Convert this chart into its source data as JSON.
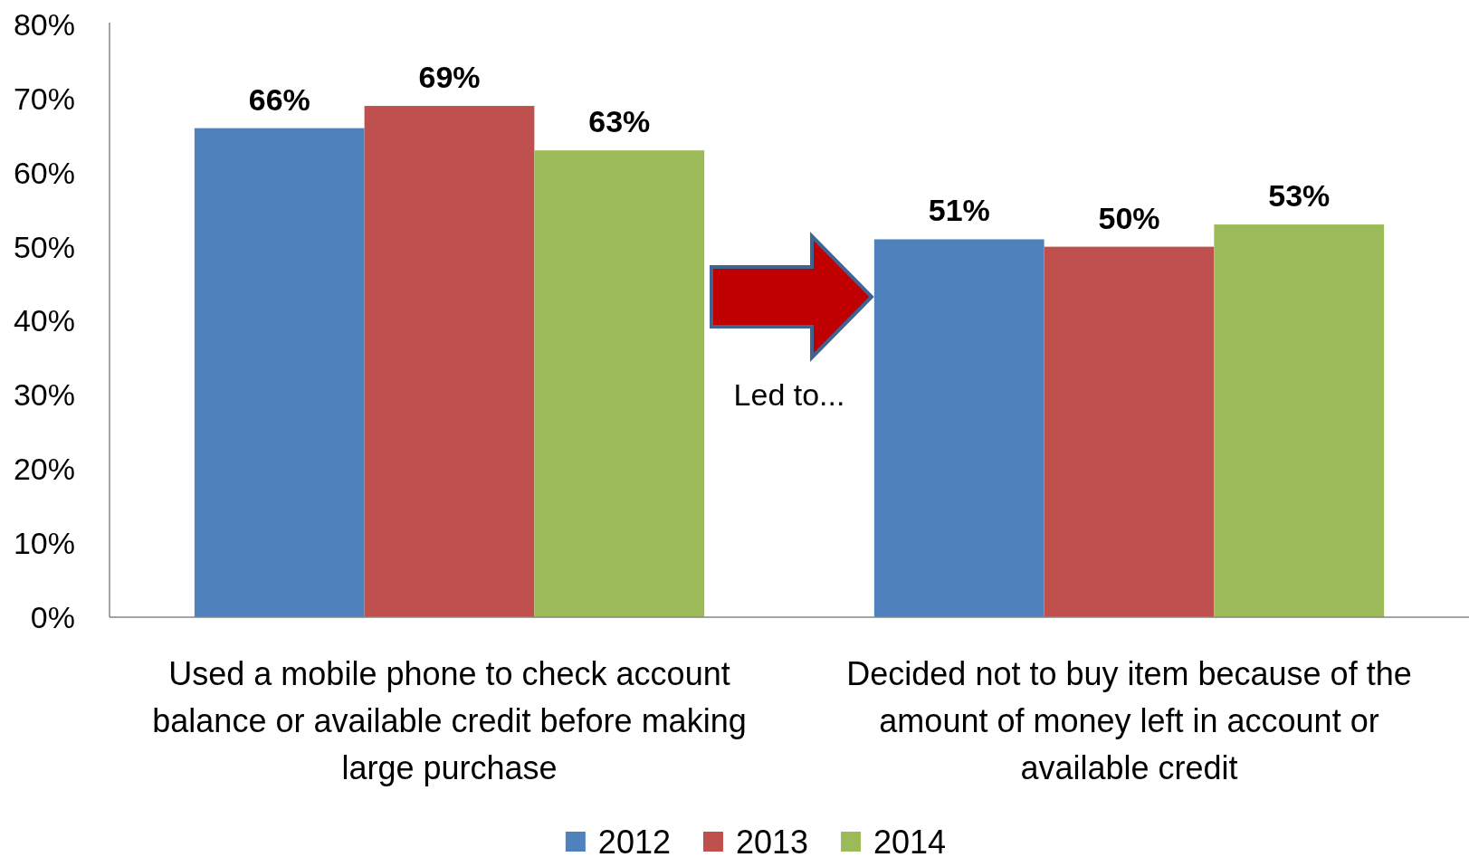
{
  "chart_data": {
    "type": "bar",
    "categories": [
      "Used a mobile phone to check account balance or available credit before making large purchase",
      "Decided not to buy item because of the amount of money left in account or available credit"
    ],
    "series": [
      {
        "name": "2012",
        "color": "#4f81bd",
        "values": [
          66,
          51
        ],
        "value_labels": [
          "66%",
          "51%"
        ]
      },
      {
        "name": "2013",
        "color": "#c0504d",
        "values": [
          69,
          50
        ],
        "value_labels": [
          "69%",
          "50%"
        ]
      },
      {
        "name": "2014",
        "color": "#9bbb59",
        "values": [
          63,
          53
        ],
        "value_labels": [
          "63%",
          "53%"
        ]
      }
    ],
    "ylim": [
      0,
      80
    ],
    "yticks": [
      {
        "value": 0,
        "label": "0%"
      },
      {
        "value": 10,
        "label": "10%"
      },
      {
        "value": 20,
        "label": "20%"
      },
      {
        "value": 30,
        "label": "30%"
      },
      {
        "value": 40,
        "label": "40%"
      },
      {
        "value": 50,
        "label": "50%"
      },
      {
        "value": 60,
        "label": "60%"
      },
      {
        "value": 70,
        "label": "70%"
      },
      {
        "value": 80,
        "label": "80%"
      }
    ],
    "legend": "bottom",
    "annotations": [
      "Led to..."
    ]
  }
}
